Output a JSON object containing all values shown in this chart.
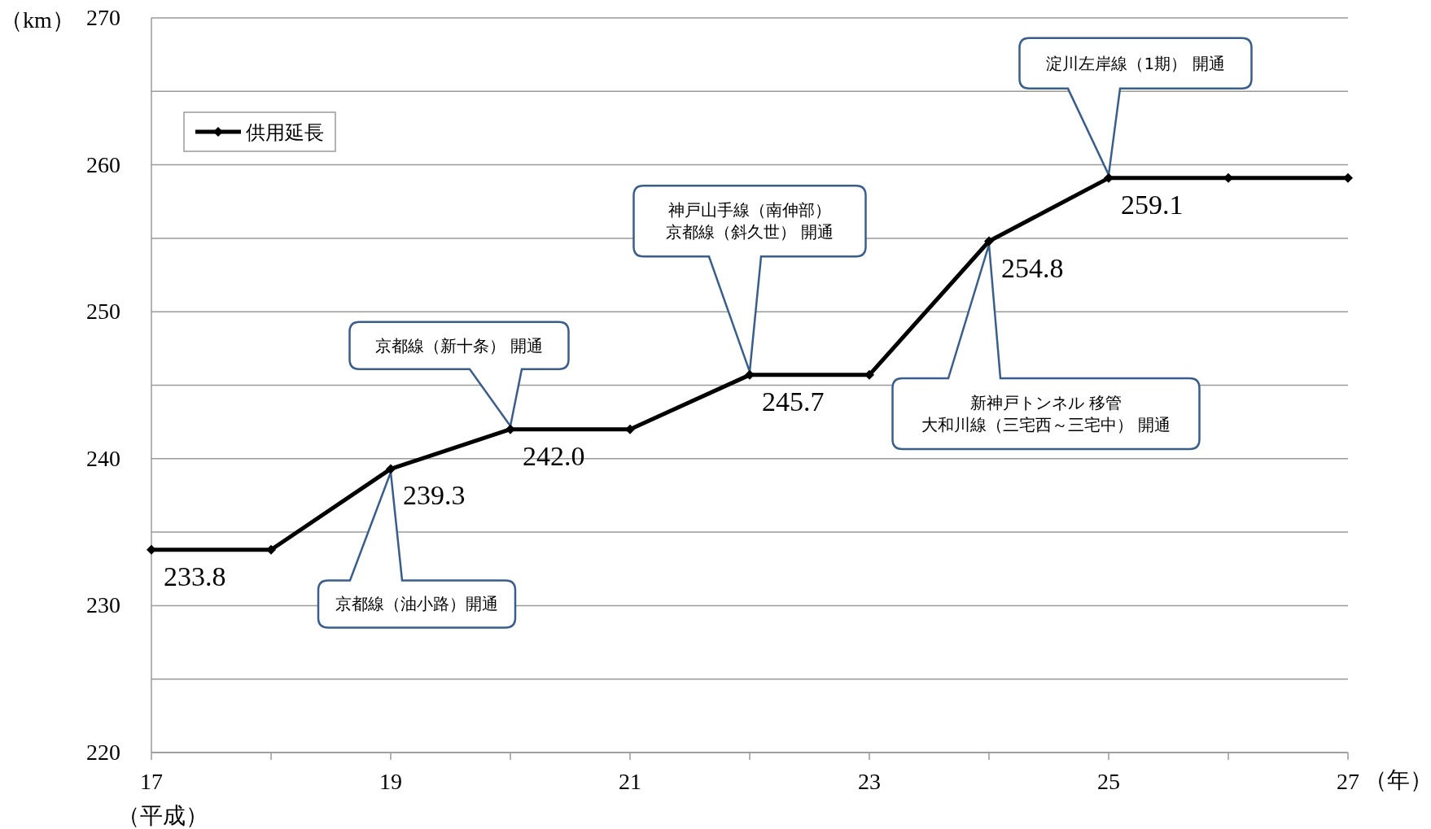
{
  "chart_data": {
    "type": "line",
    "xlabel": "（年）",
    "ylabel": "（km）",
    "x": [
      17,
      18,
      19,
      20,
      21,
      22,
      23,
      24,
      25,
      26,
      27
    ],
    "series": [
      {
        "name": "供用延長",
        "color": "#000000",
        "values": [
          233.8,
          233.8,
          239.3,
          242.0,
          242.0,
          245.7,
          245.7,
          254.8,
          259.1,
          259.1,
          259.1
        ],
        "value_labels": [
          "233.8",
          null,
          "239.3",
          "242.0",
          null,
          "245.7",
          null,
          "254.8",
          "259.1",
          null,
          null
        ]
      }
    ],
    "xlim": [
      17,
      27
    ],
    "xticks": [
      17,
      {
        "value": 18,
        "label": null
      },
      19,
      {
        "value": 20,
        "label": null
      },
      21,
      {
        "value": 22,
        "label": null
      },
      23,
      {
        "value": 24,
        "label": null
      },
      25,
      {
        "value": 26,
        "label": null
      },
      27
    ],
    "ylim": [
      220,
      270
    ],
    "yticks": [
      220,
      {
        "value": 225,
        "label": null
      },
      230,
      {
        "value": 235,
        "label": null
      },
      240,
      {
        "value": 245,
        "label": null
      },
      250,
      {
        "value": 255,
        "label": null
      },
      260,
      {
        "value": 265,
        "label": null
      },
      270
    ],
    "grid": "y",
    "legend": "top left",
    "marker": "diamond",
    "line_style": "solid",
    "annotations": [
      "（平成）",
      "京都線（油小路）開通",
      "京都線（新十条） 開通",
      "神戸山手線（南伸部）",
      "京都線（斜久世） 開通",
      "新神戸トンネル 移管",
      "大和川線（三宅西～三宅中） 開通",
      "淀川左岸線（1期） 開通"
    ]
  }
}
